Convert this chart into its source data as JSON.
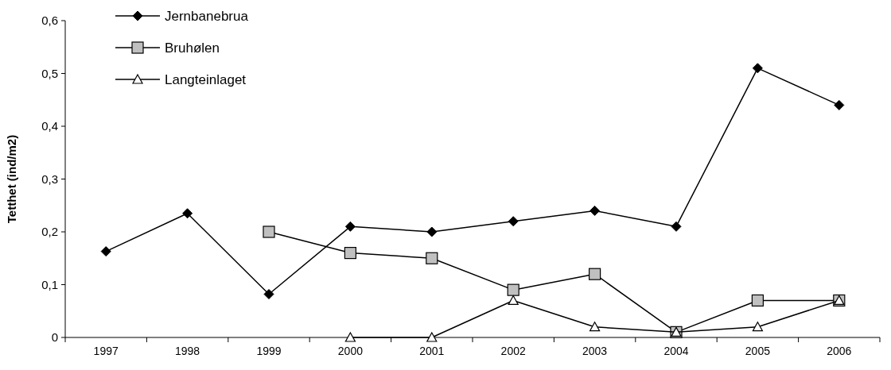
{
  "chart_data": {
    "type": "line",
    "ylabel": "Tetthet (ind/m2)",
    "categories": [
      "1997",
      "1998",
      "1999",
      "2000",
      "2001",
      "2002",
      "2003",
      "2004",
      "2005",
      "2006"
    ],
    "series": [
      {
        "name": "Jernbanebrua",
        "color": "#000000",
        "marker": "diamond",
        "values": [
          0.163,
          0.235,
          0.082,
          0.21,
          0.2,
          0.22,
          0.24,
          0.21,
          0.51,
          0.44
        ]
      },
      {
        "name": "Bruhølen",
        "color": "#000000",
        "marker": "square",
        "values": [
          null,
          null,
          0.2,
          0.16,
          0.15,
          0.09,
          0.12,
          0.01,
          0.07,
          0.07
        ]
      },
      {
        "name": "Langteinlaget",
        "color": "#000000",
        "marker": "triangle",
        "values": [
          null,
          null,
          null,
          0,
          0,
          0.07,
          0.02,
          0.01,
          0.02,
          0.07
        ]
      }
    ],
    "ylim": [
      0,
      0.6
    ],
    "yticks": [
      0,
      {
        "value": 0.1,
        "label": "0,1"
      },
      {
        "value": 0.2,
        "label": "0,2"
      },
      {
        "value": 0.3,
        "label": "0,3"
      },
      {
        "value": 0.4,
        "label": "0,4"
      },
      {
        "value": 0.5,
        "label": "0,5"
      },
      {
        "value": 0.6,
        "label": "0,6"
      }
    ],
    "grid": false,
    "legend": "top left",
    "line_style": "solid"
  }
}
